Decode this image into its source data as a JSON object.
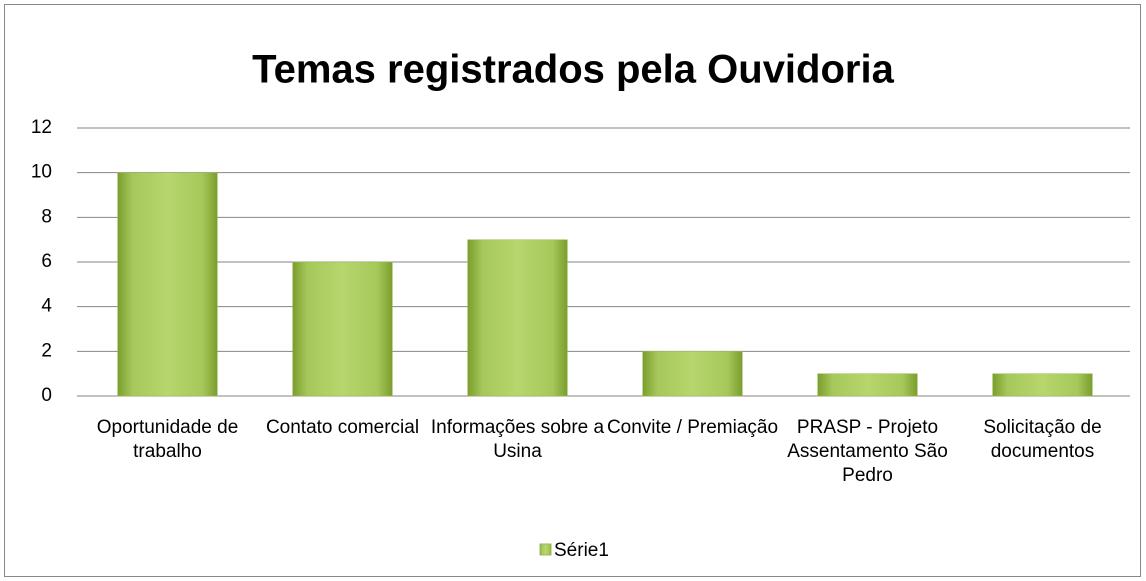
{
  "chart_data": {
    "type": "bar",
    "title": "Temas registrados pela Ouvidoria",
    "categories": [
      "Oportunidade de trabalho",
      "Contato comercial",
      "Informações sobre a Usina",
      "Convite / Premiação",
      "PRASP - Projeto Assentamento São Pedro",
      "Solicitação de documentos"
    ],
    "series": [
      {
        "name": "Série1",
        "color": "#9bbb59",
        "values": [
          10,
          6,
          7,
          2,
          1,
          1
        ]
      }
    ],
    "ylim": [
      0,
      12
    ],
    "yticks": [
      0,
      2,
      4,
      6,
      8,
      10,
      12
    ],
    "grid": true,
    "legend": "bottom"
  }
}
